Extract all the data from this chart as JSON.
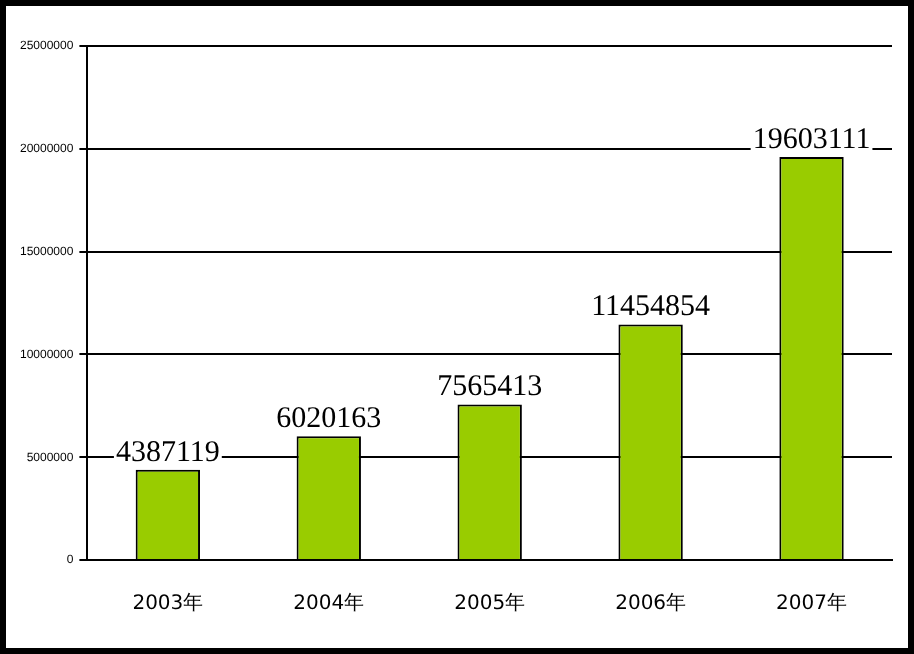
{
  "chart_data": {
    "type": "bar",
    "categories": [
      "2003年",
      "2004年",
      "2005年",
      "2006年",
      "2007年"
    ],
    "values": [
      4387119,
      6020163,
      7565413,
      11454854,
      19603111
    ],
    "color": "#99cc00",
    "ylim": [
      0,
      25000000
    ],
    "yticks": [
      0,
      5000000,
      10000000,
      15000000,
      20000000,
      25000000
    ],
    "grid": "y",
    "data_labels": true,
    "legend": false
  }
}
